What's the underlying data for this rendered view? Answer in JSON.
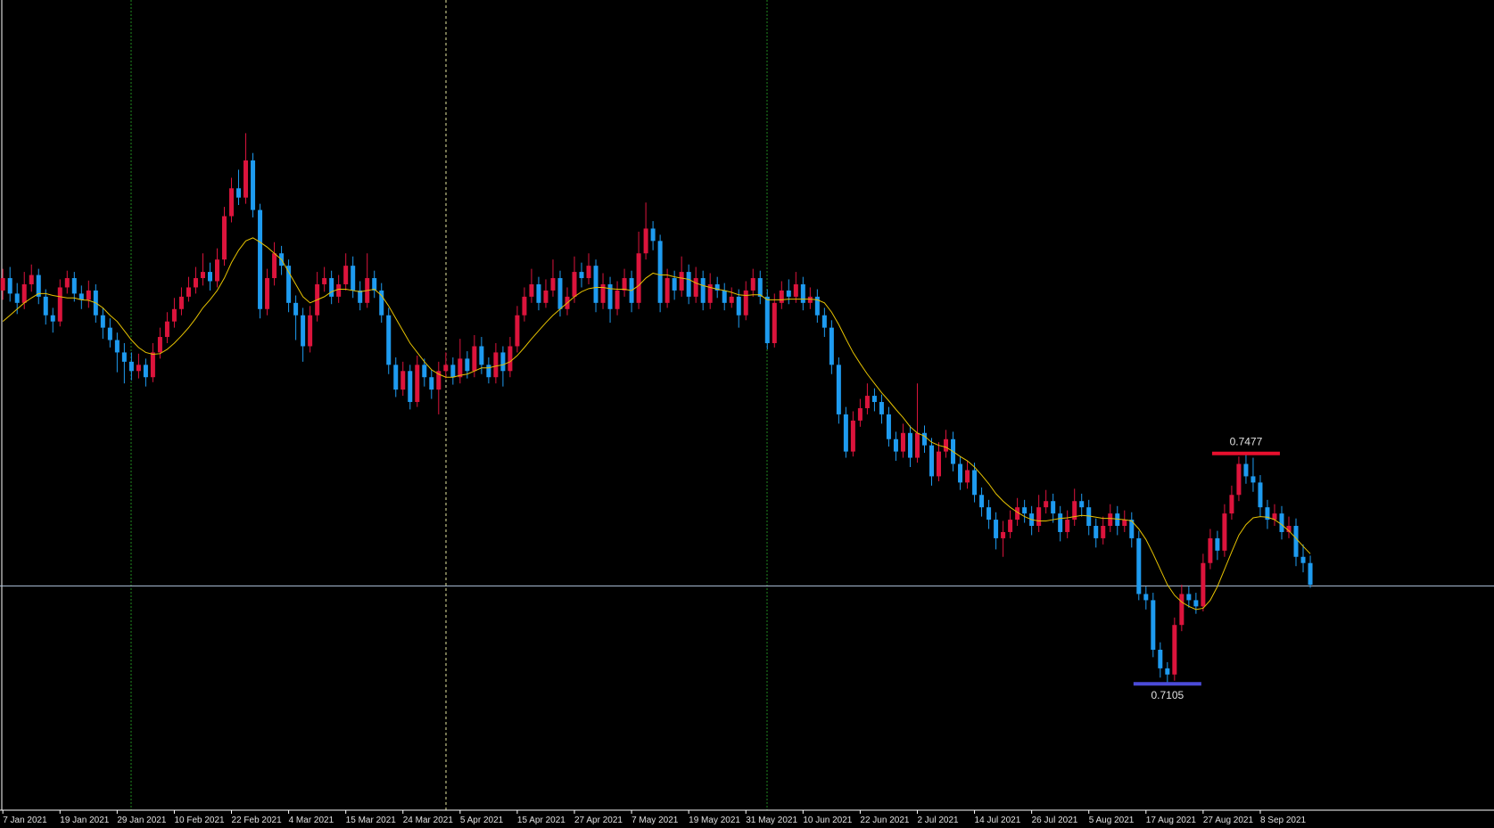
{
  "chart_data": {
    "type": "candlestick",
    "categories": [
      "7 Jan 2021",
      null,
      null,
      null,
      null,
      null,
      null,
      null,
      "19 Jan 2021",
      null,
      null,
      null,
      null,
      null,
      null,
      null,
      "29 Jan 2021",
      null,
      null,
      null,
      null,
      null,
      null,
      null,
      "10 Feb 2021",
      null,
      null,
      null,
      null,
      null,
      null,
      null,
      "22 Feb 2021",
      null,
      null,
      null,
      null,
      null,
      null,
      null,
      "4 Mar 2021",
      null,
      null,
      null,
      null,
      null,
      null,
      null,
      "15 Mar 2021",
      null,
      null,
      null,
      null,
      null,
      null,
      null,
      "24 Mar 2021",
      null,
      null,
      null,
      null,
      null,
      null,
      null,
      "5 Apr 2021",
      null,
      null,
      null,
      null,
      null,
      null,
      null,
      "15 Apr 2021",
      null,
      null,
      null,
      null,
      null,
      null,
      null,
      "27 Apr 2021",
      null,
      null,
      null,
      null,
      null,
      null,
      null,
      "7 May 2021",
      null,
      null,
      null,
      null,
      null,
      null,
      null,
      "19 May 2021",
      null,
      null,
      null,
      null,
      null,
      null,
      null,
      "31 May 2021",
      null,
      null,
      null,
      null,
      null,
      null,
      null,
      "10 Jun 2021",
      null,
      null,
      null,
      null,
      null,
      null,
      null,
      "22 Jun 2021",
      null,
      null,
      null,
      null,
      null,
      null,
      null,
      "2 Jul 2021",
      null,
      null,
      null,
      null,
      null,
      null,
      null,
      "14 Jul 2021",
      null,
      null,
      null,
      null,
      null,
      null,
      null,
      "26 Jul 2021",
      null,
      null,
      null,
      null,
      null,
      null,
      null,
      "5 Aug 2021",
      null,
      null,
      null,
      null,
      null,
      null,
      null,
      "17 Aug 2021",
      null,
      null,
      null,
      null,
      null,
      null,
      null,
      "27 Aug 2021",
      null,
      null,
      null,
      null,
      null,
      null,
      null,
      "8 Sep 2021",
      null,
      null,
      null,
      null,
      null,
      null,
      null
    ],
    "open": [
      0.774,
      0.776,
      0.7735,
      0.772,
      0.775,
      0.7765,
      0.773,
      0.77,
      0.769,
      0.7745,
      0.776,
      0.7735,
      0.7725,
      0.774,
      0.77,
      0.768,
      0.766,
      0.764,
      0.7625,
      0.761,
      0.762,
      0.76,
      0.764,
      0.7665,
      0.769,
      0.771,
      0.773,
      0.7745,
      0.776,
      0.777,
      0.7755,
      0.779,
      0.786,
      0.7905,
      0.789,
      0.795,
      0.787,
      0.771,
      0.776,
      0.78,
      0.778,
      0.772,
      0.77,
      0.765,
      0.77,
      0.775,
      0.776,
      0.773,
      0.775,
      0.778,
      0.774,
      0.772,
      0.776,
      0.774,
      0.77,
      0.762,
      0.758,
      0.761,
      0.756,
      0.762,
      0.76,
      0.758,
      0.761,
      0.762,
      0.76,
      0.763,
      0.761,
      0.765,
      0.762,
      0.76,
      0.764,
      0.761,
      0.765,
      0.77,
      0.773,
      0.775,
      0.772,
      0.774,
      0.776,
      0.771,
      0.773,
      0.777,
      0.776,
      0.778,
      0.772,
      0.775,
      0.771,
      0.774,
      0.776,
      0.772,
      0.78,
      0.784,
      0.782,
      0.772,
      0.776,
      0.774,
      0.777,
      0.773,
      0.776,
      0.772,
      0.775,
      0.774,
      0.772,
      0.773,
      0.77,
      0.774,
      0.776,
      0.773,
      0.7655,
      0.772,
      0.774,
      0.773,
      0.775,
      0.772,
      0.773,
      0.77,
      0.768,
      0.762,
      0.754,
      0.748,
      0.753,
      0.755,
      0.757,
      0.756,
      0.754,
      0.75,
      0.748,
      0.751,
      0.747,
      0.751,
      0.749,
      0.744,
      0.748,
      0.75,
      0.746,
      0.743,
      0.745,
      0.741,
      0.739,
      0.737,
      0.734,
      0.735,
      0.737,
      0.739,
      0.738,
      0.736,
      0.739,
      0.74,
      0.738,
      0.735,
      0.737,
      0.74,
      0.739,
      0.736,
      0.734,
      0.736,
      0.738,
      0.736,
      0.737,
      0.734,
      0.725,
      0.724,
      0.716,
      0.713,
      0.712,
      0.72,
      0.725,
      0.724,
      0.723,
      0.73,
      0.734,
      0.732,
      0.738,
      0.741,
      0.746,
      0.744,
      0.743,
      0.739,
      0.737,
      0.738,
      0.735,
      0.736,
      0.731,
      0.73
    ],
    "high": [
      0.7775,
      0.7778,
      0.7752,
      0.777,
      0.7782,
      0.7775,
      0.7742,
      0.7712,
      0.7758,
      0.7772,
      0.777,
      0.7748,
      0.7756,
      0.775,
      0.7712,
      0.7695,
      0.7672,
      0.7655,
      0.764,
      0.7638,
      0.763,
      0.7655,
      0.768,
      0.7705,
      0.7728,
      0.7745,
      0.7762,
      0.7778,
      0.78,
      0.7785,
      0.7808,
      0.7875,
      0.7922,
      0.7935,
      0.7994,
      0.7962,
      0.788,
      0.7775,
      0.7818,
      0.7812,
      0.779,
      0.7732,
      0.7712,
      0.7715,
      0.777,
      0.7778,
      0.7772,
      0.7765,
      0.78,
      0.7795,
      0.7755,
      0.78,
      0.7772,
      0.7752,
      0.7712,
      0.7632,
      0.7625,
      0.762,
      0.7635,
      0.763,
      0.7612,
      0.7625,
      0.764,
      0.7632,
      0.7662,
      0.7642,
      0.7668,
      0.7665,
      0.7632,
      0.7655,
      0.765,
      0.7665,
      0.7715,
      0.7745,
      0.7775,
      0.7762,
      0.7758,
      0.779,
      0.7772,
      0.7745,
      0.7795,
      0.7785,
      0.78,
      0.779,
      0.7768,
      0.7762,
      0.7755,
      0.7775,
      0.7772,
      0.7835,
      0.7882,
      0.7852,
      0.783,
      0.7775,
      0.7772,
      0.7795,
      0.7782,
      0.7778,
      0.7772,
      0.7768,
      0.7762,
      0.7752,
      0.7745,
      0.7742,
      0.7755,
      0.7775,
      0.7772,
      0.7742,
      0.7735,
      0.7755,
      0.7758,
      0.777,
      0.7762,
      0.7745,
      0.7742,
      0.7712,
      0.7692,
      0.7632,
      0.7552,
      0.7545,
      0.7565,
      0.759,
      0.7582,
      0.7572,
      0.7552,
      0.7512,
      0.7525,
      0.7522,
      0.759,
      0.7522,
      0.7502,
      0.7495,
      0.7515,
      0.7512,
      0.7472,
      0.7465,
      0.7462,
      0.7422,
      0.7402,
      0.7382,
      0.7368,
      0.7385,
      0.7405,
      0.7402,
      0.7392,
      0.741,
      0.7418,
      0.7412,
      0.7392,
      0.7385,
      0.742,
      0.7412,
      0.7402,
      0.7372,
      0.7375,
      0.7395,
      0.7392,
      0.7385,
      0.7382,
      0.7352,
      0.7262,
      0.7252,
      0.7172,
      0.714,
      0.7212,
      0.7265,
      0.7262,
      0.7252,
      0.7315,
      0.7355,
      0.7352,
      0.7395,
      0.7425,
      0.7472,
      0.7477,
      0.747,
      0.7442,
      0.7402,
      0.7395,
      0.7392,
      0.7375,
      0.7372,
      0.733,
      0.7312
    ],
    "low": [
      0.7725,
      0.7722,
      0.7702,
      0.771,
      0.7738,
      0.7718,
      0.7685,
      0.7672,
      0.7682,
      0.7735,
      0.7722,
      0.771,
      0.7712,
      0.7688,
      0.7662,
      0.7648,
      0.7608,
      0.759,
      0.7595,
      0.7598,
      0.7585,
      0.7592,
      0.763,
      0.7655,
      0.768,
      0.77,
      0.7722,
      0.7735,
      0.7748,
      0.774,
      0.7745,
      0.778,
      0.785,
      0.7878,
      0.788,
      0.7858,
      0.7695,
      0.77,
      0.7748,
      0.7765,
      0.7705,
      0.766,
      0.7625,
      0.764,
      0.769,
      0.7738,
      0.7718,
      0.772,
      0.774,
      0.7728,
      0.7708,
      0.7712,
      0.7728,
      0.7688,
      0.7605,
      0.7568,
      0.757,
      0.7548,
      0.7552,
      0.7585,
      0.7565,
      0.754,
      0.7598,
      0.7588,
      0.759,
      0.7598,
      0.76,
      0.7605,
      0.759,
      0.759,
      0.7585,
      0.76,
      0.764,
      0.769,
      0.772,
      0.7708,
      0.7712,
      0.773,
      0.7698,
      0.77,
      0.772,
      0.7745,
      0.775,
      0.7705,
      0.771,
      0.7688,
      0.77,
      0.773,
      0.7705,
      0.771,
      0.779,
      0.7805,
      0.7705,
      0.7712,
      0.7725,
      0.773,
      0.7718,
      0.772,
      0.7708,
      0.771,
      0.7728,
      0.7708,
      0.7712,
      0.768,
      0.7692,
      0.773,
      0.7718,
      0.7645,
      0.7648,
      0.771,
      0.7718,
      0.772,
      0.7708,
      0.771,
      0.7688,
      0.7665,
      0.7605,
      0.7525,
      0.747,
      0.7472,
      0.752,
      0.754,
      0.7545,
      0.7525,
      0.7488,
      0.7465,
      0.747,
      0.7455,
      0.7462,
      0.7478,
      0.7425,
      0.7432,
      0.747,
      0.7448,
      0.7418,
      0.742,
      0.7398,
      0.7375,
      0.7355,
      0.7322,
      0.731,
      0.734,
      0.736,
      0.7365,
      0.7345,
      0.735,
      0.738,
      0.7365,
      0.7335,
      0.734,
      0.736,
      0.7375,
      0.7345,
      0.7325,
      0.733,
      0.735,
      0.7345,
      0.735,
      0.7325,
      0.724,
      0.7225,
      0.7148,
      0.7115,
      0.7105,
      0.711,
      0.719,
      0.7228,
      0.7218,
      0.7222,
      0.729,
      0.7305,
      0.731,
      0.737,
      0.74,
      0.7428,
      0.7415,
      0.7375,
      0.7355,
      0.736,
      0.7338,
      0.734,
      0.7295,
      0.7285,
      0.726
    ],
    "close": [
      0.776,
      0.7735,
      0.772,
      0.775,
      0.7765,
      0.773,
      0.77,
      0.769,
      0.7745,
      0.776,
      0.7735,
      0.7725,
      0.774,
      0.77,
      0.768,
      0.766,
      0.764,
      0.7625,
      0.761,
      0.762,
      0.76,
      0.764,
      0.7665,
      0.769,
      0.771,
      0.773,
      0.7745,
      0.776,
      0.777,
      0.7755,
      0.779,
      0.786,
      0.7905,
      0.789,
      0.795,
      0.787,
      0.771,
      0.776,
      0.78,
      0.778,
      0.772,
      0.77,
      0.765,
      0.77,
      0.775,
      0.776,
      0.773,
      0.775,
      0.778,
      0.774,
      0.772,
      0.776,
      0.774,
      0.77,
      0.762,
      0.758,
      0.761,
      0.756,
      0.762,
      0.76,
      0.758,
      0.761,
      0.762,
      0.76,
      0.763,
      0.761,
      0.765,
      0.762,
      0.76,
      0.764,
      0.761,
      0.765,
      0.77,
      0.773,
      0.775,
      0.772,
      0.774,
      0.776,
      0.771,
      0.773,
      0.777,
      0.776,
      0.778,
      0.772,
      0.775,
      0.771,
      0.774,
      0.776,
      0.772,
      0.78,
      0.784,
      0.782,
      0.772,
      0.776,
      0.774,
      0.777,
      0.773,
      0.776,
      0.772,
      0.775,
      0.774,
      0.772,
      0.773,
      0.77,
      0.774,
      0.776,
      0.773,
      0.7655,
      0.772,
      0.774,
      0.773,
      0.775,
      0.772,
      0.773,
      0.77,
      0.768,
      0.762,
      0.754,
      0.748,
      0.753,
      0.755,
      0.757,
      0.756,
      0.754,
      0.75,
      0.748,
      0.751,
      0.747,
      0.751,
      0.749,
      0.744,
      0.748,
      0.75,
      0.746,
      0.743,
      0.745,
      0.741,
      0.739,
      0.737,
      0.734,
      0.735,
      0.737,
      0.739,
      0.738,
      0.736,
      0.739,
      0.74,
      0.738,
      0.735,
      0.737,
      0.74,
      0.739,
      0.736,
      0.734,
      0.736,
      0.738,
      0.736,
      0.737,
      0.734,
      0.725,
      0.724,
      0.716,
      0.713,
      0.712,
      0.72,
      0.725,
      0.724,
      0.723,
      0.73,
      0.734,
      0.732,
      0.738,
      0.741,
      0.746,
      0.744,
      0.743,
      0.739,
      0.737,
      0.738,
      0.735,
      0.736,
      0.731,
      0.73,
      0.7265
    ],
    "up_color": "#dc143c",
    "down_color": "#1e9bf0",
    "ma": {
      "color": "#e6c200",
      "values": [
        0.769,
        0.77,
        0.771,
        0.772,
        0.7728,
        0.7735,
        0.7735,
        0.7732,
        0.773,
        0.7728,
        0.7728,
        0.7725,
        0.7724,
        0.772,
        0.7712,
        0.77,
        0.769,
        0.7675,
        0.766,
        0.7648,
        0.764,
        0.7637,
        0.7638,
        0.7645,
        0.7655,
        0.7667,
        0.768,
        0.7695,
        0.7712,
        0.7725,
        0.774,
        0.776,
        0.7785,
        0.7805,
        0.782,
        0.7825,
        0.7818,
        0.781,
        0.78,
        0.779,
        0.777,
        0.775,
        0.773,
        0.772,
        0.7725,
        0.773,
        0.7738,
        0.7742,
        0.7742,
        0.774,
        0.7738,
        0.774,
        0.7742,
        0.7732,
        0.7715,
        0.7695,
        0.7675,
        0.7655,
        0.764,
        0.7625,
        0.7612,
        0.7605,
        0.76,
        0.76,
        0.7603,
        0.7605,
        0.761,
        0.7615,
        0.7615,
        0.7618,
        0.762,
        0.7625,
        0.7635,
        0.7648,
        0.7662,
        0.7675,
        0.7688,
        0.77,
        0.771,
        0.772,
        0.773,
        0.7738,
        0.7743,
        0.7745,
        0.7745,
        0.7743,
        0.7742,
        0.7742,
        0.774,
        0.7748,
        0.776,
        0.7768,
        0.7765,
        0.7765,
        0.7762,
        0.776,
        0.7758,
        0.7752,
        0.7748,
        0.7745,
        0.7742,
        0.774,
        0.7737,
        0.7733,
        0.7732,
        0.7733,
        0.7733,
        0.7725,
        0.7725,
        0.7725,
        0.7726,
        0.7726,
        0.7726,
        0.7726,
        0.7725,
        0.772,
        0.7705,
        0.7685,
        0.7662,
        0.764,
        0.7622,
        0.7605,
        0.759,
        0.7575,
        0.7562,
        0.7548,
        0.7535,
        0.752,
        0.751,
        0.7505,
        0.7495,
        0.749,
        0.7487,
        0.748,
        0.7472,
        0.7465,
        0.7455,
        0.7442,
        0.7428,
        0.7412,
        0.74,
        0.739,
        0.7382,
        0.7375,
        0.737,
        0.7368,
        0.7368,
        0.737,
        0.7372,
        0.7373,
        0.7375,
        0.7377,
        0.7376,
        0.7374,
        0.7372,
        0.7372,
        0.7371,
        0.737,
        0.7368,
        0.7355,
        0.7338,
        0.7315,
        0.729,
        0.7265,
        0.7248,
        0.7237,
        0.723,
        0.7225,
        0.7227,
        0.724,
        0.7262,
        0.729,
        0.7318,
        0.7345,
        0.7362,
        0.7373,
        0.7375,
        0.7374,
        0.737,
        0.7362,
        0.7352,
        0.734,
        0.7327,
        0.7315
      ]
    },
    "price_line": {
      "value": 0.7263,
      "color": "#b0c4de"
    },
    "annotations": [
      {
        "text": "0.7477",
        "value": 0.7477,
        "color": "#e8102e",
        "of": "high"
      },
      {
        "text": "0.7105",
        "value": 0.7105,
        "color": "#4b4bd8",
        "of": "low"
      }
    ],
    "ylim": [
      0.6901,
      0.8209
    ]
  }
}
